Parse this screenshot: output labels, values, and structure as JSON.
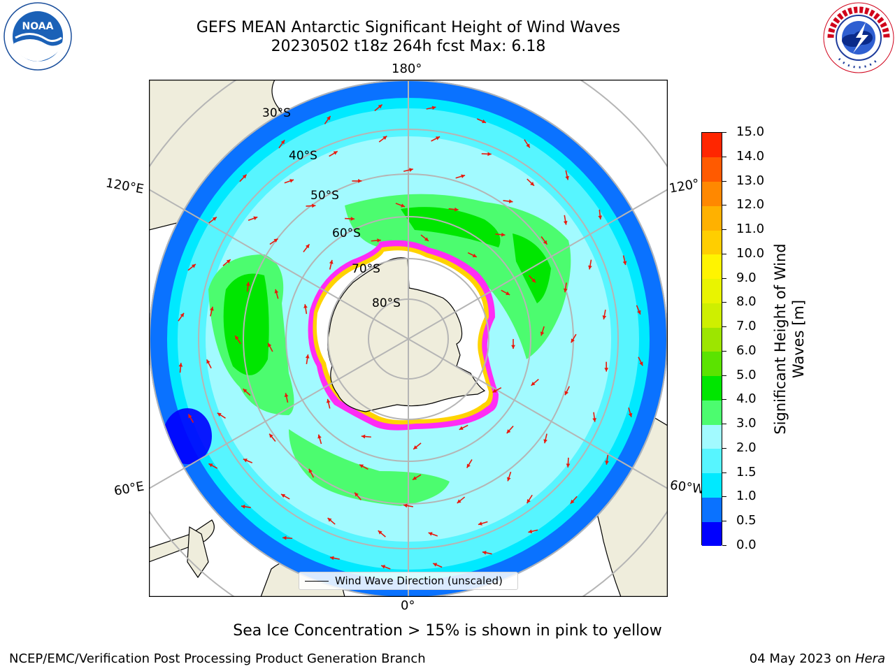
{
  "title": {
    "line1": "GEFS MEAN Antarctic Significant Height of Wind Waves",
    "line2": "20230502 t18z 264h fcst   Max: 6.18"
  },
  "map": {
    "projection": "south polar stereographic",
    "lon_labels": {
      "top": "180°",
      "bottom": "0°",
      "upper_left": "120°E",
      "lower_left": "60°E",
      "upper_right": "120°",
      "lower_right": "60°W"
    },
    "lat_labels": [
      "30°S",
      "40°S",
      "50°S",
      "60°S",
      "70°S",
      "80°S"
    ],
    "legend_label": "Wind Wave Direction (unscaled)",
    "land_color": "#efeddc",
    "gridline_color": "#b5b5b5",
    "arrow_color": "#e8190d"
  },
  "colorbar": {
    "label": "Significant Height of Wind Waves [m]",
    "ticks": [
      "0.0",
      "0.5",
      "1.0",
      "1.5",
      "2.0",
      "3.0",
      "4.0",
      "5.0",
      "6.0",
      "7.0",
      "8.0",
      "9.0",
      "10.0",
      "11.0",
      "12.0",
      "13.0",
      "14.0",
      "15.0"
    ],
    "colors": [
      "#0000fe",
      "#0a72ff",
      "#00e9ff",
      "#57f5ff",
      "#a2faff",
      "#4cfc6f",
      "#00e600",
      "#5be300",
      "#9de500",
      "#ceef00",
      "#e9f400",
      "#fff400",
      "#ffce00",
      "#ffb100",
      "#ff8800",
      "#ff5a00",
      "#ff2600",
      "#ff0000"
    ]
  },
  "chart_data": {
    "type": "heatmap",
    "title": "GEFS MEAN Antarctic Significant Height of Wind Waves",
    "subtitle": "20230502 t18z 264h fcst   Max: 6.18",
    "variable": "Significant Height of Wind Waves [m]",
    "max_value": 6.18,
    "value_range": [
      0.0,
      15.0
    ],
    "overlay": "Wind Wave Direction (unscaled)"
  },
  "note": "Sea Ice Concentration > 15% is shown in pink to yellow",
  "footer": {
    "left": "NCEP/EMC/Verification Post Processing Product Generation Branch",
    "date": "04 May 2023 on ",
    "machine": "Hera"
  }
}
